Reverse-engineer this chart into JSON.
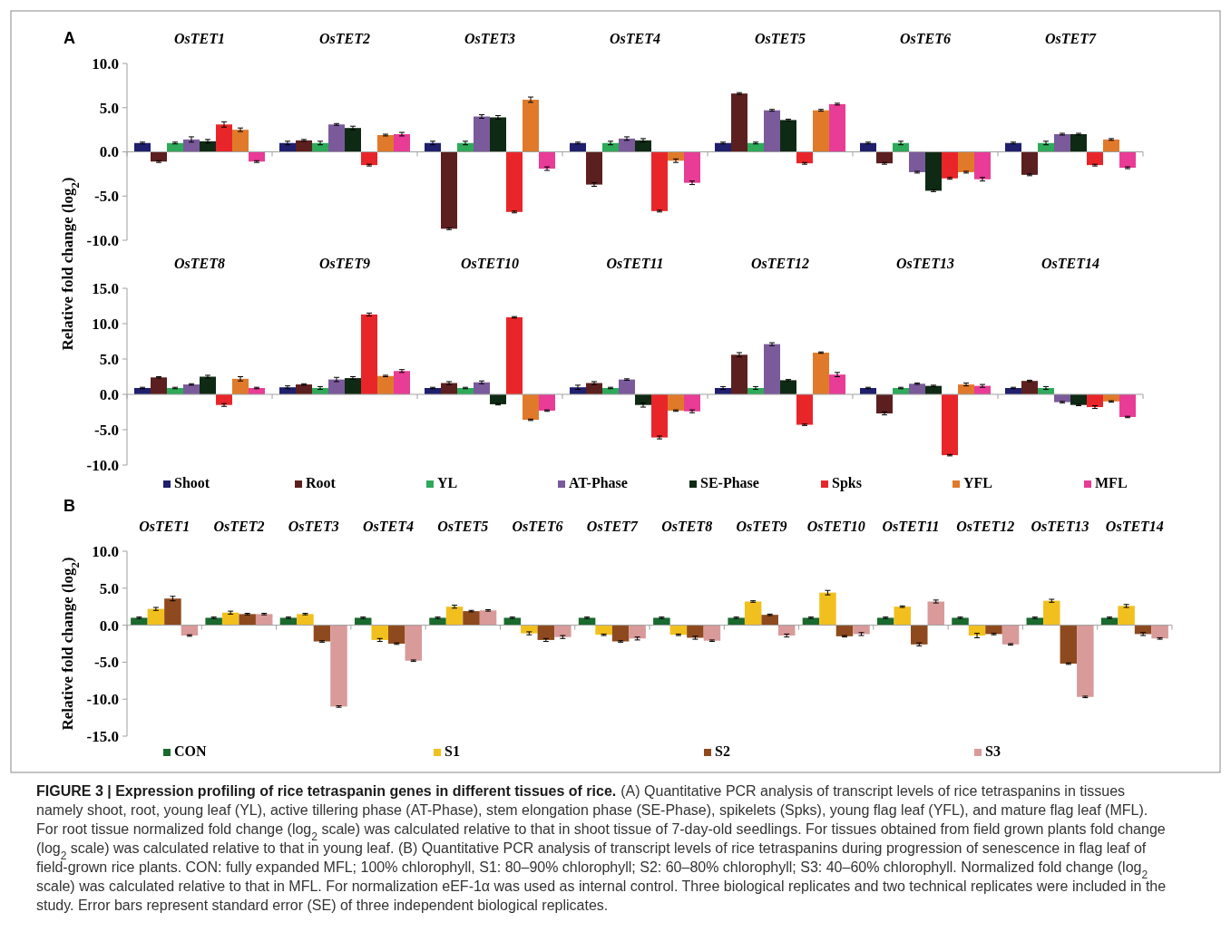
{
  "chart_data": [
    {
      "type": "bar",
      "title": "A",
      "ylabel": "Relative fold change (log$_{2}$)",
      "categories": [
        "OsTET1",
        "OsTET2",
        "OsTET3",
        "OsTET4",
        "OsTET5",
        "OsTET6",
        "OsTET7"
      ],
      "series": [
        {
          "color": "#1f1f6e",
          "values": [
            1.0,
            1.0,
            1.0,
            1.0,
            1.0,
            1.0,
            1.0
          ],
          "errors": [
            0.1,
            0.2,
            0.2,
            0.1,
            0.1,
            0.1,
            0.1
          ]
        },
        {
          "color": "#5c1f1f",
          "values": [
            -1.1,
            1.3,
            -8.7,
            -3.7,
            6.6,
            -1.3,
            -2.6
          ],
          "errors": [
            0.1,
            0.1,
            0.1,
            0.2,
            0.1,
            0.1,
            0.1
          ]
        },
        {
          "color": "#2eaa5a",
          "values": [
            1.0,
            1.0,
            1.0,
            1.0,
            1.0,
            1.0,
            1.0
          ],
          "errors": [
            0.1,
            0.2,
            0.2,
            0.2,
            0.1,
            0.2,
            0.2
          ]
        },
        {
          "color": "#7a5a9a",
          "values": [
            1.4,
            3.1,
            4.0,
            1.5,
            4.7,
            -2.3,
            2.0
          ],
          "errors": [
            0.3,
            0.1,
            0.2,
            0.2,
            0.1,
            0.1,
            0.1
          ]
        },
        {
          "color": "#0f2a14",
          "values": [
            1.2,
            2.7,
            3.9,
            1.3,
            3.6,
            -4.4,
            2.0
          ],
          "errors": [
            0.2,
            0.2,
            0.2,
            0.2,
            0.1,
            0.1,
            0.1
          ]
        },
        {
          "color": "#e8262a",
          "values": [
            3.1,
            -1.5,
            -6.8,
            -6.7,
            -1.3,
            -3.0,
            -1.5
          ],
          "errors": [
            0.3,
            0.1,
            0.1,
            0.1,
            0.1,
            0.1,
            0.1
          ]
        },
        {
          "color": "#e07a2a",
          "values": [
            2.5,
            1.9,
            5.9,
            -1.0,
            4.7,
            -2.3,
            1.4
          ],
          "errors": [
            0.2,
            0.1,
            0.3,
            0.2,
            0.1,
            0.1,
            0.1
          ]
        },
        {
          "color": "#e83c96",
          "values": [
            -1.1,
            2.0,
            -1.9,
            -3.5,
            5.4,
            -3.1,
            -1.8
          ],
          "errors": [
            0.1,
            0.2,
            0.2,
            0.2,
            0.1,
            0.2,
            0.1
          ]
        }
      ],
      "ylim": [
        -10,
        10
      ],
      "yticks": [
        {
          "value": -10,
          "label": "-10.0"
        },
        {
          "value": -5,
          "label": "-5.0"
        },
        {
          "value": 0,
          "label": "0.0"
        },
        {
          "value": 5,
          "label": "5.0"
        },
        {
          "value": 10,
          "label": "10.0"
        }
      ]
    },
    {
      "type": "bar",
      "categories": [
        "OsTET8",
        "OsTET9",
        "OsTET10",
        "OsTET11",
        "OsTET12",
        "OsTET13",
        "OsTET14"
      ],
      "series": [
        {
          "name": "Shoot",
          "color": "#1f1f6e",
          "values": [
            0.9,
            1.0,
            0.9,
            1.0,
            0.9,
            0.9,
            0.9
          ],
          "errors": [
            0.1,
            0.2,
            0.1,
            0.3,
            0.2,
            0.1,
            0.1
          ]
        },
        {
          "name": "Root",
          "color": "#5c1f1f",
          "values": [
            2.4,
            1.4,
            1.6,
            1.6,
            5.6,
            -2.7,
            1.9
          ],
          "errors": [
            0.1,
            0.1,
            0.2,
            0.2,
            0.3,
            0.2,
            0.1
          ]
        },
        {
          "name": "YL",
          "color": "#2eaa5a",
          "values": [
            0.9,
            0.9,
            0.9,
            0.9,
            0.9,
            0.9,
            0.9
          ],
          "errors": [
            0.1,
            0.2,
            0.1,
            0.1,
            0.2,
            0.1,
            0.2
          ]
        },
        {
          "name": "AT-Phase",
          "color": "#7a5a9a",
          "values": [
            1.4,
            2.1,
            1.7,
            2.1,
            7.1,
            1.5,
            -1.1
          ],
          "errors": [
            0.1,
            0.3,
            0.2,
            0.1,
            0.2,
            0.1,
            0.1
          ]
        },
        {
          "name": "SE-Phase",
          "color": "#0f2a14",
          "values": [
            2.5,
            2.3,
            -1.4,
            -1.5,
            2.0,
            1.2,
            -1.5
          ],
          "errors": [
            0.2,
            0.2,
            0.1,
            0.3,
            0.1,
            0.1,
            0.1
          ]
        },
        {
          "name": "Spks",
          "color": "#e8262a",
          "values": [
            -1.5,
            11.3,
            10.9,
            -6.1,
            -4.3,
            -8.6,
            -1.8
          ],
          "errors": [
            0.2,
            0.2,
            0.1,
            0.2,
            0.1,
            0.1,
            0.2
          ]
        },
        {
          "name": "YFL",
          "color": "#e07a2a",
          "values": [
            2.2,
            2.6,
            -3.6,
            -2.3,
            5.9,
            1.4,
            -1.0
          ],
          "errors": [
            0.3,
            0.1,
            0.1,
            0.1,
            0.1,
            0.2,
            0.1
          ]
        },
        {
          "name": "MFL",
          "color": "#e83c96",
          "values": [
            0.9,
            3.3,
            -2.3,
            -2.4,
            2.8,
            1.2,
            -3.2
          ],
          "errors": [
            0.1,
            0.2,
            0.1,
            0.2,
            0.3,
            0.2,
            0.1
          ]
        }
      ],
      "ylim": [
        -10,
        15
      ],
      "yticks": [
        {
          "value": -10,
          "label": "-10.0"
        },
        {
          "value": -5,
          "label": "-5.0"
        },
        {
          "value": 0,
          "label": "0.0"
        },
        {
          "value": 5,
          "label": "5.0"
        },
        {
          "value": 10,
          "label": "10.0"
        },
        {
          "value": 15,
          "label": "15.0"
        }
      ],
      "legend": "bottom"
    },
    {
      "type": "bar",
      "title": "B",
      "ylabel": "Relative fold change (log$_{2}$)",
      "categories": [
        "OsTET1",
        "OsTET2",
        "OsTET3",
        "OsTET4",
        "OsTET5",
        "OsTET6",
        "OsTET7",
        "OsTET8",
        "OsTET9",
        "OsTET10",
        "OsTET11",
        "OsTET12",
        "OsTET13",
        "OsTET14"
      ],
      "series": [
        {
          "name": "CON",
          "color": "#1a6a2e",
          "values": [
            1.0,
            1.0,
            1.0,
            1.0,
            1.0,
            1.0,
            1.0,
            1.0,
            1.0,
            1.0,
            1.0,
            1.0,
            1.0,
            1.0
          ],
          "errors": [
            0.1,
            0.1,
            0.1,
            0.1,
            0.1,
            0.1,
            0.1,
            0.1,
            0.1,
            0.1,
            0.1,
            0.1,
            0.1,
            0.1
          ]
        },
        {
          "name": "S1",
          "color": "#f2c01e",
          "values": [
            2.2,
            1.7,
            1.5,
            -2.0,
            2.5,
            -1.1,
            -1.3,
            -1.3,
            3.2,
            4.4,
            2.5,
            -1.4,
            3.3,
            2.6
          ],
          "errors": [
            0.2,
            0.2,
            0.1,
            0.2,
            0.2,
            0.2,
            0.1,
            0.1,
            0.1,
            0.3,
            0.1,
            0.3,
            0.2,
            0.2
          ]
        },
        {
          "name": "S2",
          "color": "#8e4a1e",
          "values": [
            3.6,
            1.5,
            -2.2,
            -2.5,
            1.9,
            -2.0,
            -2.2,
            -1.7,
            1.4,
            -1.5,
            -2.6,
            -1.2,
            -5.2,
            -1.2
          ],
          "errors": [
            0.3,
            0.1,
            0.1,
            0.1,
            0.1,
            0.2,
            0.1,
            0.2,
            0.1,
            0.1,
            0.2,
            0.1,
            0.1,
            0.2
          ]
        },
        {
          "name": "S3",
          "color": "#d99a9a",
          "values": [
            -1.4,
            1.5,
            -11.0,
            -4.8,
            2.0,
            -1.6,
            -1.8,
            -2.1,
            -1.4,
            -1.2,
            3.2,
            -2.6,
            -9.7,
            -1.8
          ],
          "errors": [
            0.1,
            0.1,
            0.1,
            0.1,
            0.1,
            0.2,
            0.2,
            0.1,
            0.2,
            0.2,
            0.2,
            0.1,
            0.1,
            0.1
          ]
        }
      ],
      "ylim": [
        -15,
        10
      ],
      "yticks": [
        {
          "value": -15,
          "label": "-15.0"
        },
        {
          "value": -10,
          "label": "-10.0"
        },
        {
          "value": -5,
          "label": "-5.0"
        },
        {
          "value": 0,
          "label": "0.0"
        },
        {
          "value": 5,
          "label": "5.0"
        },
        {
          "value": 10,
          "label": "10.0"
        }
      ],
      "legend": "bottom",
      "annotations": [
        "FIGURE 3 | Expression profiling of rice tetraspanin genes in different tissues of rice.",
        "(A) Quantitative PCR analysis of transcript levels of rice tetraspanins in tissues namely shoot, root, young leaf (YL), active tillering phase (AT-Phase), stem elongation phase (SE-Phase), spikelets (Spks), young flag leaf (YFL), and mature flag leaf (MFL). For root tissue normalized fold change (log$_{2}$ scale) was calculated relative to that in shoot tissue of 7-day-old seedlings. For tissues obtained from field grown plants fold change (log$_{2}$ scale) was calculated relative to that in young leaf. (B) Quantitative PCR analysis of transcript levels of rice tetraspanins during progression of senescence in flag leaf of field-grown rice plants. CON: fully expanded MFL; 100% chlorophyll, S1: 80–90% chlorophyll; S2: 60–80% chlorophyll; S3: 40–60% chlorophyll. Normalized fold change (log$_{2}$ scale) was calculated relative to that in MFL. For normalization eEF-1α was used as internal control. Three biological replicates and two technical replicates were included in the study. Error bars represent standard error (SE) of three independent biological replicates."
      ]
    }
  ]
}
